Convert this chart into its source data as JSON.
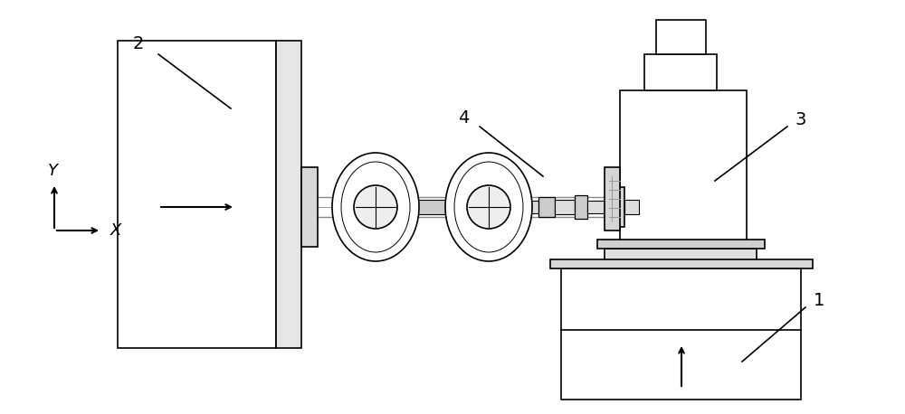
{
  "bg_color": "#ffffff",
  "lc": "#000000",
  "gray1": "#aaaaaa",
  "gray2": "#cccccc",
  "gray3": "#e0e0e0",
  "fig_width": 10.0,
  "fig_height": 4.58,
  "dpi": 100
}
